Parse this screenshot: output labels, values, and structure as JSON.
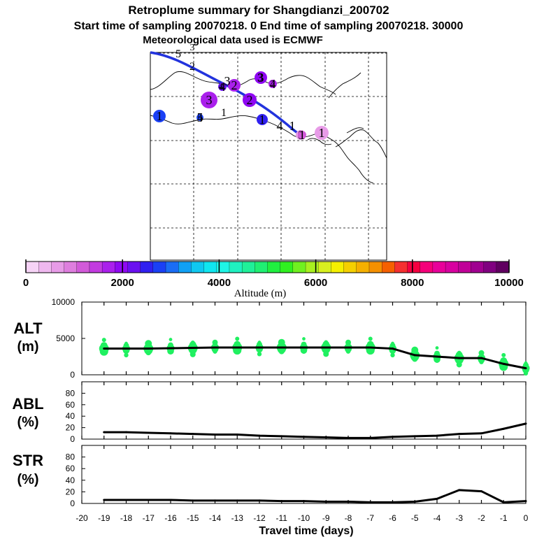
{
  "title": {
    "line1": "Retroplume summary for Shangdianzi_200702",
    "line2": "Start time of sampling 20070218.    0    End time of sampling 20070218. 30000",
    "line3": "Meteorological data used is ECMWF"
  },
  "colorbar": {
    "label": "Altitude  (m)",
    "ticks": [
      "0",
      "2000",
      "4000",
      "6000",
      "8000",
      "10000"
    ],
    "colors": [
      "#f6d3f6",
      "#efb8ef",
      "#e79be7",
      "#de7ede",
      "#d25ad9",
      "#c23be0",
      "#aa20ec",
      "#8f08f2",
      "#6a10f0",
      "#3020f0",
      "#1a40f5",
      "#1a6df5",
      "#10a0f5",
      "#10c8f0",
      "#10e6f0",
      "#1ff5e6",
      "#20f0c0",
      "#20f099",
      "#20f073",
      "#20f040",
      "#30f020",
      "#70f020",
      "#a8f020",
      "#d8f020",
      "#f5f000",
      "#f5d000",
      "#f5b000",
      "#f59000",
      "#f56000",
      "#f53030",
      "#f50040",
      "#f5007a",
      "#e8009a",
      "#d800a0",
      "#c00098",
      "#a00090",
      "#800080",
      "#600060"
    ]
  },
  "map": {
    "markers": [
      {
        "label": "1",
        "color": "#e79be7"
      },
      {
        "label": "1",
        "color": "#3020f0"
      },
      {
        "label": "1",
        "color": "#1a40f5"
      },
      {
        "label": "2",
        "color": "#8f08f2"
      },
      {
        "label": "2",
        "color": "#aa20ec"
      },
      {
        "label": "3",
        "color": "#aa20ec"
      },
      {
        "label": "3",
        "color": "#8f08f2"
      },
      {
        "label": "4",
        "color": "#aa20ec"
      },
      {
        "label": "4",
        "color": "#6a10f0"
      },
      {
        "label": "5",
        "color": "#1a40f5"
      },
      {
        "label": "0",
        "color": "#e79be7"
      },
      {
        "label": "1",
        "color": "#d25ad9"
      }
    ]
  },
  "chart_data": [
    {
      "type": "line",
      "panel": "ALT",
      "ylabel": "ALT\n(m)",
      "ylim": [
        0,
        10000
      ],
      "yticks": [
        0,
        5000,
        10000
      ],
      "x": [
        -19,
        -18,
        -17,
        -16,
        -15,
        -14,
        -13,
        -12,
        -11,
        -10,
        -9,
        -8,
        -7,
        -6,
        -5,
        -4,
        -3,
        -2,
        -1,
        0
      ],
      "values": [
        3600,
        3600,
        3600,
        3650,
        3700,
        3750,
        3750,
        3750,
        3750,
        3750,
        3750,
        3750,
        3750,
        3600,
        2700,
        2500,
        2300,
        2300,
        1500,
        900
      ],
      "scatter_color": "#20f060"
    },
    {
      "type": "line",
      "panel": "ABL",
      "ylabel": "ABL\n(%)",
      "ylim": [
        0,
        100
      ],
      "yticks": [
        0,
        20,
        40,
        60,
        80
      ],
      "x": [
        -19,
        -18,
        -17,
        -16,
        -15,
        -14,
        -13,
        -12,
        -11,
        -10,
        -9,
        -8,
        -7,
        -6,
        -5,
        -4,
        -3,
        -2,
        -1,
        0
      ],
      "values": [
        12,
        12,
        11,
        10,
        9,
        8,
        8,
        6,
        5,
        4,
        3,
        2,
        2,
        4,
        5,
        6,
        9,
        10,
        18,
        27
      ]
    },
    {
      "type": "line",
      "panel": "STR",
      "ylabel": "STR\n(%)",
      "ylim": [
        0,
        100
      ],
      "yticks": [
        0,
        20,
        40,
        60,
        80
      ],
      "x": [
        -19,
        -18,
        -17,
        -16,
        -15,
        -14,
        -13,
        -12,
        -11,
        -10,
        -9,
        -8,
        -7,
        -6,
        -5,
        -4,
        -3,
        -2,
        -1,
        0
      ],
      "values": [
        6,
        6,
        6,
        6,
        5,
        5,
        5,
        5,
        4,
        4,
        3,
        3,
        2,
        2,
        3,
        8,
        23,
        21,
        2,
        4
      ]
    }
  ],
  "xaxis": {
    "ticks": [
      "-20",
      "-19",
      "-18",
      "-17",
      "-16",
      "-15",
      "-14",
      "-13",
      "-12",
      "-11",
      "-10",
      "-9",
      "-8",
      "-7",
      "-6",
      "-5",
      "-4",
      "-3",
      "-2",
      "-1",
      "0"
    ],
    "label": "Travel time (days)"
  }
}
